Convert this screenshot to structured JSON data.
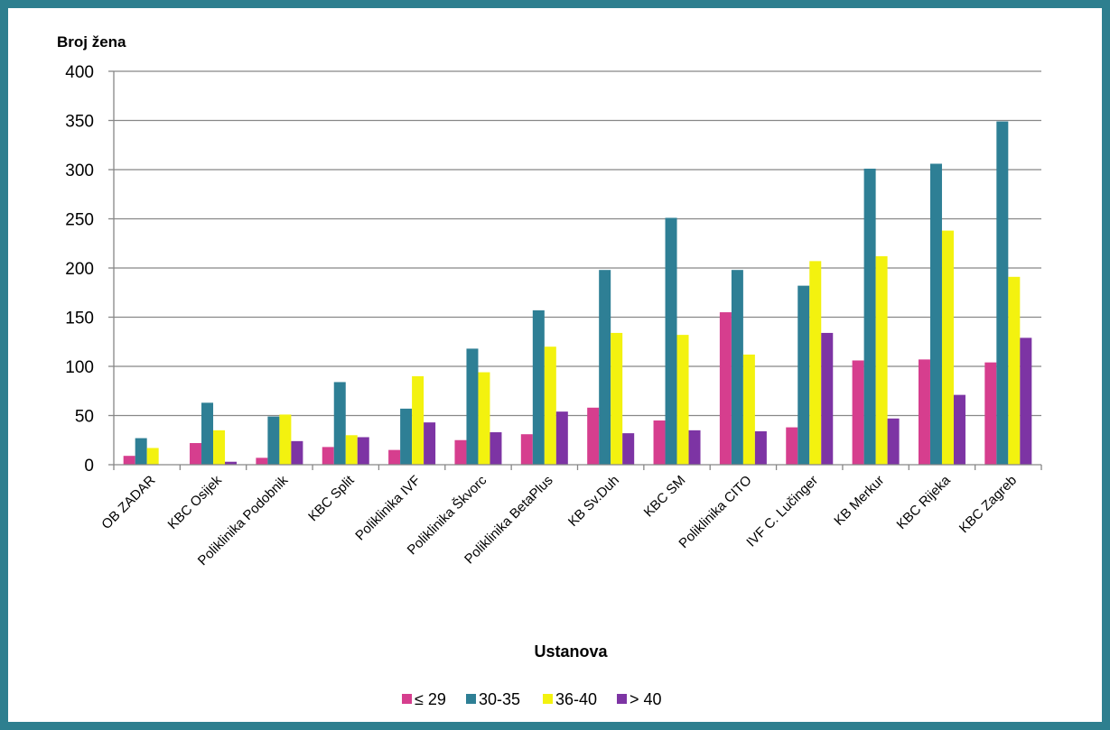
{
  "chart_data": {
    "type": "bar",
    "ylabel": "Broj žena",
    "xlabel": "Ustanova",
    "ylim": [
      0,
      400
    ],
    "yticks": [
      0,
      50,
      100,
      150,
      200,
      250,
      300,
      350,
      400
    ],
    "grid": true,
    "legend_position": "bottom",
    "categories": [
      "OB ZADAR",
      "KBC Osijek",
      "Poliklinika Podobnik",
      "KBC Split",
      "Poliklinika IVF",
      "Poliklinika Škvorc",
      "Poliklinika BetaPlus",
      "KB Sv.Duh",
      "KBC SM",
      "Poliklinika CITO",
      "IVF C. Lučinger",
      "KB Merkur",
      "KBC Rijeka",
      "KBC Zagreb"
    ],
    "series": [
      {
        "name": "≤ 29",
        "color": "#d63e8e",
        "values": [
          9,
          22,
          7,
          18,
          15,
          25,
          31,
          58,
          45,
          155,
          38,
          106,
          107,
          104
        ]
      },
      {
        "name": "30-35",
        "color": "#2e7f95",
        "values": [
          27,
          63,
          49,
          84,
          57,
          118,
          157,
          198,
          251,
          198,
          182,
          301,
          306,
          349
        ]
      },
      {
        "name": "36-40",
        "color": "#f3f20f",
        "values": [
          17,
          35,
          51,
          30,
          90,
          94,
          120,
          134,
          132,
          112,
          207,
          212,
          238,
          191
        ]
      },
      {
        "name": "> 40",
        "color": "#7d34a4",
        "values": [
          0,
          3,
          24,
          28,
          43,
          33,
          54,
          32,
          35,
          34,
          134,
          47,
          71,
          129
        ]
      }
    ]
  }
}
